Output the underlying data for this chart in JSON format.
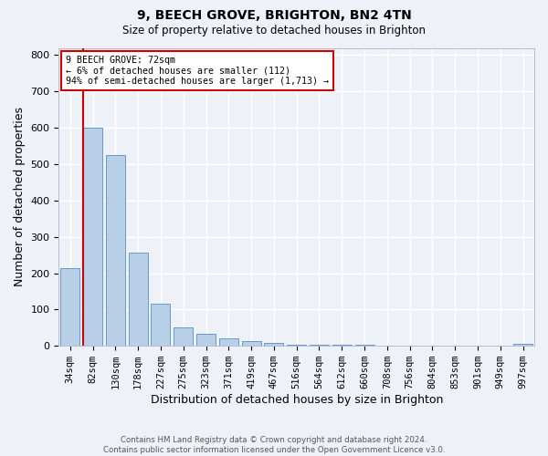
{
  "title1": "9, BEECH GROVE, BRIGHTON, BN2 4TN",
  "title2": "Size of property relative to detached houses in Brighton",
  "xlabel": "Distribution of detached houses by size in Brighton",
  "ylabel": "Number of detached properties",
  "categories": [
    "34sqm",
    "82sqm",
    "130sqm",
    "178sqm",
    "227sqm",
    "275sqm",
    "323sqm",
    "371sqm",
    "419sqm",
    "467sqm",
    "516sqm",
    "564sqm",
    "612sqm",
    "660sqm",
    "708sqm",
    "756sqm",
    "804sqm",
    "853sqm",
    "901sqm",
    "949sqm",
    "997sqm"
  ],
  "values": [
    215,
    600,
    525,
    257,
    117,
    52,
    32,
    20,
    14,
    8,
    4,
    3,
    2,
    2,
    1,
    1,
    0,
    0,
    0,
    0,
    6
  ],
  "bar_color": "#b8cfe8",
  "bar_edge_color": "#6699cc",
  "marker_line_color": "#cc0000",
  "annotation_text": "9 BEECH GROVE: 72sqm\n← 6% of detached houses are smaller (112)\n94% of semi-detached houses are larger (1,713) →",
  "annotation_box_color": "#ffffff",
  "annotation_box_edge": "#cc0000",
  "ylim": [
    0,
    820
  ],
  "yticks": [
    0,
    100,
    200,
    300,
    400,
    500,
    600,
    700,
    800
  ],
  "footer1": "Contains HM Land Registry data © Crown copyright and database right 2024.",
  "footer2": "Contains public sector information licensed under the Open Government Licence v3.0.",
  "bg_color": "#eef2f8",
  "grid_color": "#ffffff"
}
